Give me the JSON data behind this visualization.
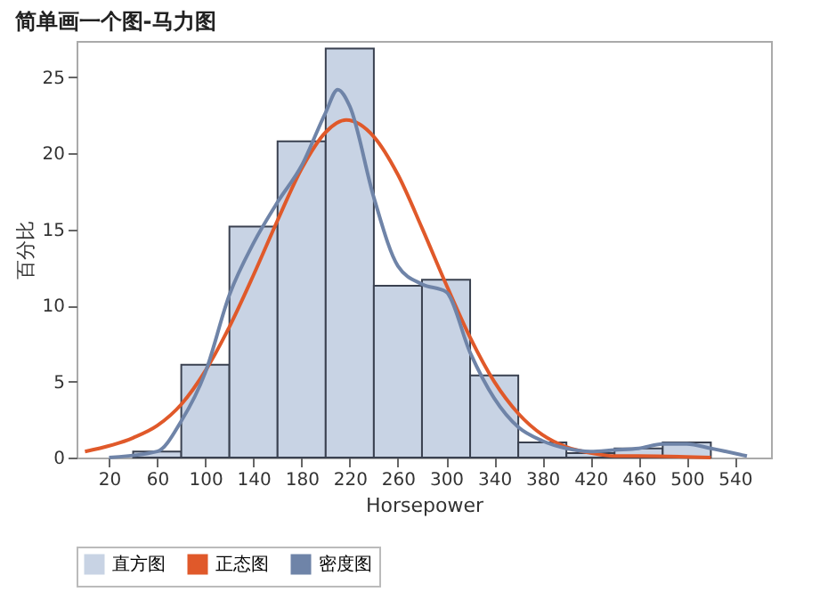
{
  "chart_data": {
    "type": "histogram",
    "title": "简单画一个图-马力图",
    "xlabel": "Horsepower",
    "ylabel": "百分比",
    "bins": [
      40,
      80,
      120,
      160,
      200,
      240,
      280,
      320,
      360,
      400,
      440,
      480,
      520
    ],
    "series": [
      {
        "name": "直方图",
        "type": "histogram",
        "color": "#c8d3e4",
        "values": [
          0.4,
          6.1,
          15.2,
          20.8,
          26.9,
          11.3,
          11.7,
          5.4,
          1.0,
          0.3,
          0.6,
          1.0
        ]
      },
      {
        "name": "正态图",
        "type": "line",
        "color": "#e0592a",
        "x": [
          0,
          40,
          60,
          80,
          100,
          120,
          140,
          160,
          180,
          200,
          217,
          240,
          260,
          280,
          300,
          320,
          340,
          360,
          380,
          400,
          420,
          440,
          460,
          520
        ],
        "values": [
          0.4,
          1.3,
          2.1,
          3.5,
          5.7,
          8.6,
          12.0,
          15.6,
          19.0,
          21.4,
          22.2,
          21.1,
          18.6,
          15.1,
          11.4,
          7.9,
          5.0,
          2.9,
          1.5,
          0.7,
          0.3,
          0.1,
          0.1,
          0
        ]
      },
      {
        "name": "密度图",
        "type": "line",
        "color": "#6f84a8",
        "x": [
          20,
          60,
          80,
          100,
          120,
          140,
          160,
          180,
          200,
          210,
          220,
          240,
          260,
          280,
          300,
          320,
          340,
          360,
          380,
          400,
          420,
          440,
          460,
          480,
          500,
          520,
          550
        ],
        "values": [
          0,
          0.4,
          2.4,
          5.6,
          10.7,
          14.1,
          16.8,
          19.2,
          22.7,
          24.2,
          23.1,
          17.1,
          12.6,
          11.4,
          10.9,
          6.9,
          3.9,
          2.0,
          1.1,
          0.6,
          0.4,
          0.5,
          0.6,
          0.9,
          0.9,
          0.6,
          0.1
        ]
      }
    ],
    "xlim": [
      -7,
      570
    ],
    "xticks": [
      20,
      60,
      100,
      140,
      180,
      220,
      260,
      300,
      340,
      380,
      420,
      460,
      500,
      540
    ],
    "ylim": [
      0,
      27.4
    ],
    "yticks": [
      0,
      5,
      10,
      15,
      20,
      25
    ],
    "grid": false,
    "legend": "bottom"
  }
}
